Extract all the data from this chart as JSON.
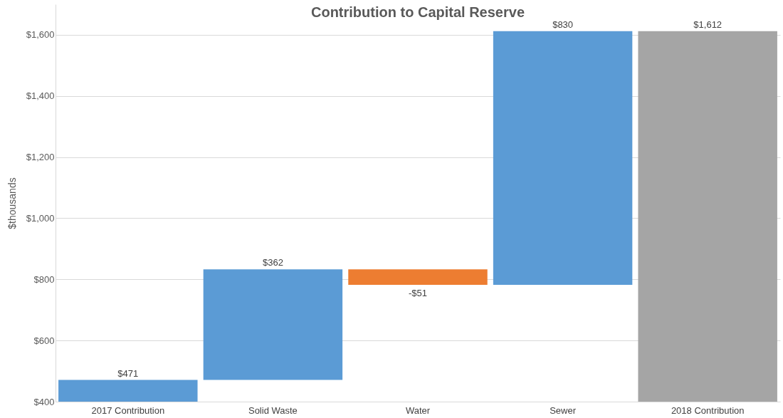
{
  "chart_data": {
    "type": "bar",
    "title": "Contribution to Capital Reserve",
    "ylabel": "$thousands",
    "categories": [
      "2017 Contribution",
      "Solid Waste",
      "Water",
      "Sewer",
      "2018 Contribution"
    ],
    "values": [
      471,
      362,
      -51,
      830,
      1612
    ],
    "base": [
      0,
      471,
      833,
      782,
      0
    ],
    "colors": [
      "#5b9bd5",
      "#5b9bd5",
      "#ed7d31",
      "#5b9bd5",
      "#a5a5a5"
    ],
    "value_labels": [
      "$471",
      "$362",
      "-$51",
      "$830",
      "$1,612"
    ],
    "ylim": [
      400,
      1700
    ],
    "yticks": [
      {
        "value": 400,
        "label": "$400"
      },
      {
        "value": 600,
        "label": "$600"
      },
      {
        "value": 800,
        "label": "$800"
      },
      {
        "value": 1000,
        "label": "$1,000"
      },
      {
        "value": 1200,
        "label": "$1,200"
      },
      {
        "value": 1400,
        "label": "$1,400"
      },
      {
        "value": 1600,
        "label": "$1,600"
      }
    ],
    "grid": "y"
  }
}
